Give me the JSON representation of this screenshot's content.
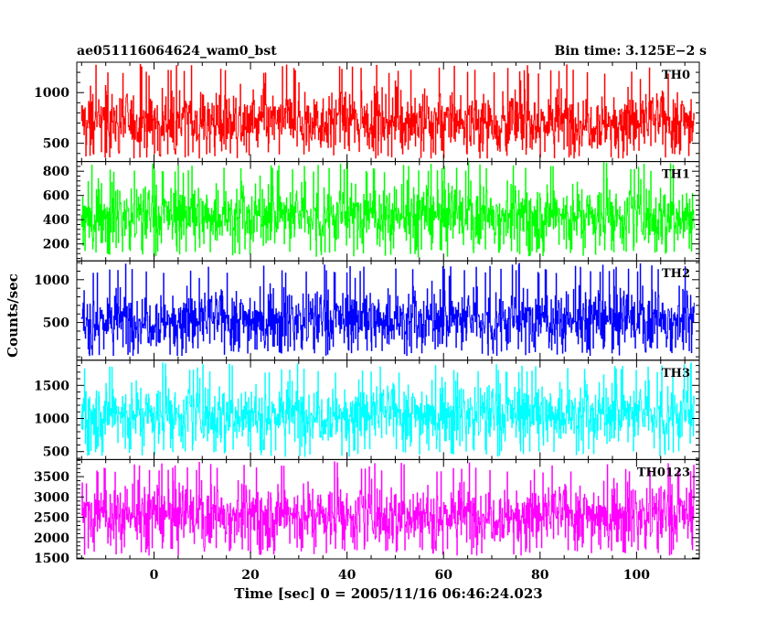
{
  "header": {
    "left_title": "ae051116064624_wam0_bst",
    "right_title": "Bin time: 3.125E−2 s"
  },
  "chart_data": {
    "type": "line",
    "xlabel": "Time [sec] 0 = 2005/11/16 06:46:24.023",
    "ylabel": "Counts/sec",
    "xlim": [
      -16,
      113
    ],
    "x_ticks": [
      0,
      20,
      40,
      60,
      80,
      100
    ],
    "panels": [
      {
        "name": "TH0",
        "color": "#ff0000",
        "ylim": [
          320,
          1300
        ],
        "y_ticks": [
          500,
          1000
        ],
        "x_range": [
          -15,
          112
        ],
        "mean": 720,
        "low": 350,
        "high": 1290
      },
      {
        "name": "TH1",
        "color": "#00ff00",
        "ylim": [
          60,
          880
        ],
        "y_ticks": [
          200,
          400,
          600,
          800
        ],
        "x_range": [
          -15,
          112
        ],
        "mean": 440,
        "low": 90,
        "high": 880
      },
      {
        "name": "TH2",
        "color": "#0000ff",
        "ylim": [
          60,
          1220
        ],
        "y_ticks": [
          500,
          1000
        ],
        "x_range": [
          -15,
          112
        ],
        "mean": 540,
        "low": 110,
        "high": 1200
      },
      {
        "name": "TH3",
        "color": "#00ffff",
        "ylim": [
          380,
          1880
        ],
        "y_ticks": [
          500,
          1000,
          1500
        ],
        "x_range": [
          -15,
          112
        ],
        "mean": 1080,
        "low": 420,
        "high": 1850
      },
      {
        "name": "TH0123",
        "color": "#ff00ff",
        "ylim": [
          1480,
          3920
        ],
        "y_ticks": [
          1500,
          2000,
          2500,
          3000,
          3500
        ],
        "x_range": [
          -15,
          112
        ],
        "mean": 2580,
        "low": 1560,
        "high": 3880
      }
    ]
  }
}
